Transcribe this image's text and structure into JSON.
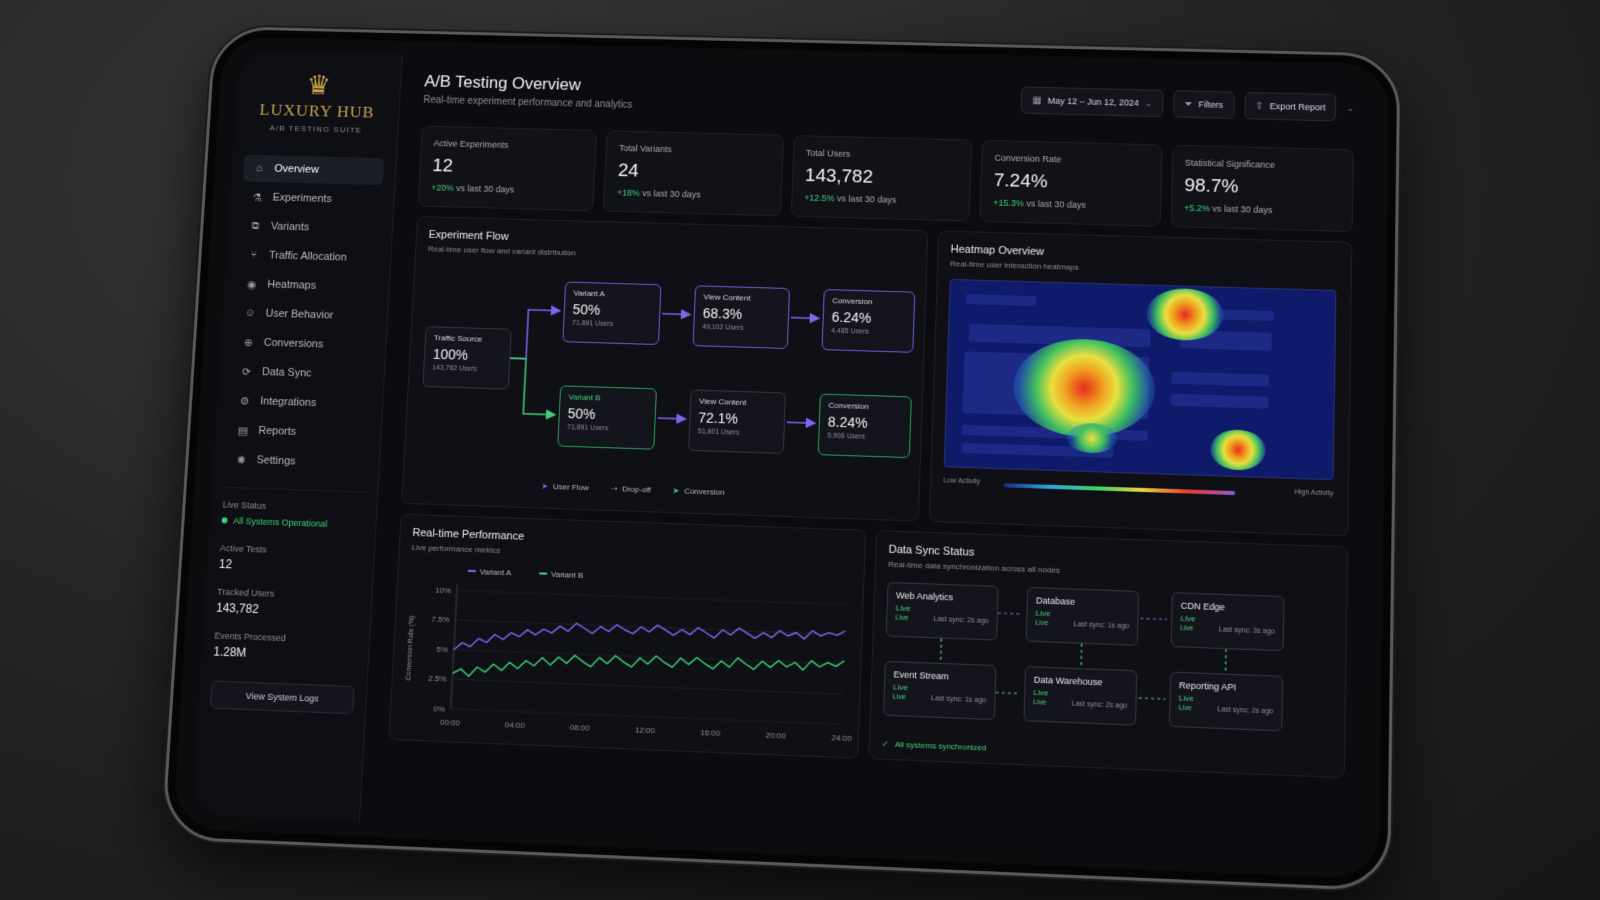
{
  "brand": {
    "name": "LUXURY HUB",
    "subtitle": "A/B TESTING SUITE"
  },
  "sidebar": {
    "items": [
      {
        "label": "Overview",
        "icon": "home-icon",
        "active": true
      },
      {
        "label": "Experiments",
        "icon": "flask-icon"
      },
      {
        "label": "Variants",
        "icon": "variants-icon"
      },
      {
        "label": "Traffic Allocation",
        "icon": "split-icon"
      },
      {
        "label": "Heatmaps",
        "icon": "heatmap-icon"
      },
      {
        "label": "User Behavior",
        "icon": "user-behavior-icon"
      },
      {
        "label": "Conversions",
        "icon": "conversion-icon"
      },
      {
        "label": "Data Sync",
        "icon": "sync-icon"
      },
      {
        "label": "Integrations",
        "icon": "integrations-icon"
      },
      {
        "label": "Reports",
        "icon": "reports-icon"
      },
      {
        "label": "Settings",
        "icon": "gear-icon"
      }
    ],
    "live_status_label": "Live Status",
    "live_status_value": "All Systems Operational",
    "active_tests_label": "Active Tests",
    "active_tests_value": "12",
    "tracked_users_label": "Tracked Users",
    "tracked_users_value": "143,782",
    "events_label": "Events Processed",
    "events_value": "1.28M",
    "logs_button": "View System Logs"
  },
  "header": {
    "title": "A/B Testing Overview",
    "subtitle": "Real-time experiment performance and analytics",
    "date_range": "May 12 – Jun 12, 2024",
    "filters_label": "Filters",
    "export_label": "Export Report"
  },
  "kpis": [
    {
      "label": "Active Experiments",
      "value": "12",
      "delta": "+20%",
      "delta_suffix": "vs last 30 days"
    },
    {
      "label": "Total Variants",
      "value": "24",
      "delta": "+18%",
      "delta_suffix": "vs last 30 days"
    },
    {
      "label": "Total Users",
      "value": "143,782",
      "delta": "+12.5%",
      "delta_suffix": "vs last 30 days"
    },
    {
      "label": "Conversion Rate",
      "value": "7.24%",
      "delta": "+15.3%",
      "delta_suffix": "vs last 30 days"
    },
    {
      "label": "Statistical Significance",
      "value": "98.7%",
      "delta": "+5.2%",
      "delta_suffix": "vs last 30 days"
    }
  ],
  "flow": {
    "title": "Experiment Flow",
    "subtitle": "Real-time user flow and variant distribution",
    "source": {
      "label": "Traffic Source",
      "value": "100%",
      "users": "143,782 Users"
    },
    "variant_a": {
      "label": "Variant A",
      "value": "50%",
      "users": "71,891 Users"
    },
    "view_a": {
      "label": "View Content",
      "value": "68.3%",
      "users": "49,102 Users"
    },
    "conv_a": {
      "label": "Conversion",
      "value": "6.24%",
      "users": "4,485 Users"
    },
    "variant_b": {
      "label": "Variant B",
      "value": "50%",
      "users": "71,891 Users"
    },
    "view_b": {
      "label": "View Content",
      "value": "72.1%",
      "users": "51,801 Users"
    },
    "conv_b": {
      "label": "Conversion",
      "value": "8.24%",
      "users": "5,906 Users"
    },
    "legend": {
      "user_flow": "User Flow",
      "drop_off": "Drop-off",
      "conversion": "Conversion"
    },
    "colors": {
      "variant_a": "#6b5bd6",
      "variant_b": "#2c9c5e"
    }
  },
  "heatmap": {
    "title": "Heatmap Overview",
    "subtitle": "Real-time user interaction heatmaps",
    "low_label": "Low Activity",
    "high_label": "High Activity"
  },
  "performance": {
    "title": "Real-time Performance",
    "subtitle": "Live performance metrics",
    "chart_data": {
      "type": "line",
      "ylabel": "Conversion Rate (%)",
      "x_ticks": [
        "00:00",
        "04:00",
        "08:00",
        "12:00",
        "16:00",
        "20:00",
        "24:00"
      ],
      "y_ticks": [
        "0%",
        "2.5%",
        "5%",
        "7.5%",
        "10%"
      ],
      "ylim": [
        0,
        10
      ],
      "xlim": [
        0,
        24
      ],
      "series": [
        {
          "name": "Variant A",
          "color": "#7b68ee",
          "x": [
            0,
            0.5,
            1,
            1.5,
            2,
            2.5,
            3,
            3.5,
            4,
            4.5,
            5,
            5.5,
            6,
            6.5,
            7,
            7.5,
            8,
            8.5,
            9,
            9.5,
            10,
            10.5,
            11,
            11.5,
            12,
            12.5,
            13,
            13.5,
            14,
            14.5,
            15,
            15.5,
            16,
            16.5,
            17,
            17.5,
            18,
            18.5,
            19,
            19.5,
            20,
            20.5,
            21,
            21.5,
            22,
            22.5,
            23,
            23.5,
            24
          ],
          "values": [
            5.0,
            5.6,
            5.3,
            6.0,
            5.7,
            6.4,
            6.0,
            6.6,
            6.3,
            6.9,
            6.5,
            7.0,
            6.7,
            7.3,
            6.9,
            7.6,
            7.2,
            6.8,
            7.4,
            7.0,
            7.6,
            7.2,
            6.9,
            7.5,
            7.1,
            7.7,
            7.3,
            6.9,
            7.4,
            7.0,
            7.6,
            7.2,
            6.8,
            7.5,
            7.1,
            7.7,
            7.3,
            6.9,
            7.4,
            7.0,
            7.6,
            7.2,
            7.5,
            7.0,
            7.7,
            7.3,
            7.6,
            7.4,
            7.8
          ]
        },
        {
          "name": "Variant B",
          "color": "#3ecf7a",
          "x": [
            0,
            0.5,
            1,
            1.5,
            2,
            2.5,
            3,
            3.5,
            4,
            4.5,
            5,
            5.5,
            6,
            6.5,
            7,
            7.5,
            8,
            8.5,
            9,
            9.5,
            10,
            10.5,
            11,
            11.5,
            12,
            12.5,
            13,
            13.5,
            14,
            14.5,
            15,
            15.5,
            16,
            16.5,
            17,
            17.5,
            18,
            18.5,
            19,
            19.5,
            20,
            20.5,
            21,
            21.5,
            22,
            22.5,
            23,
            23.5,
            24
          ],
          "values": [
            3.0,
            3.4,
            2.8,
            3.6,
            3.2,
            3.9,
            3.4,
            4.1,
            3.6,
            4.3,
            3.9,
            4.6,
            4.0,
            4.7,
            4.2,
            4.9,
            4.4,
            4.0,
            4.8,
            4.3,
            5.0,
            4.5,
            4.1,
            4.9,
            4.4,
            5.1,
            4.6,
            4.2,
            5.0,
            4.5,
            5.1,
            4.6,
            4.2,
            4.9,
            4.4,
            5.2,
            4.7,
            4.3,
            5.0,
            4.5,
            5.1,
            4.6,
            5.0,
            4.4,
            5.2,
            4.7,
            5.1,
            4.8,
            5.3
          ]
        }
      ]
    }
  },
  "sync": {
    "title": "Data Sync Status",
    "subtitle": "Real-time data synchronization across all nodes",
    "live_word": "Live",
    "nodes": [
      {
        "name": "Web Analytics",
        "last": "Last sync: 2s ago"
      },
      {
        "name": "Database",
        "last": "Last sync: 1s ago"
      },
      {
        "name": "CDN Edge",
        "last": "Last sync: 3s ago"
      },
      {
        "name": "Event Stream",
        "last": "Last sync: 1s ago"
      },
      {
        "name": "Data Warehouse",
        "last": "Last sync: 2s ago"
      },
      {
        "name": "Reporting API",
        "last": "Last sync: 2s ago"
      }
    ],
    "footer": "All systems synchronized"
  }
}
